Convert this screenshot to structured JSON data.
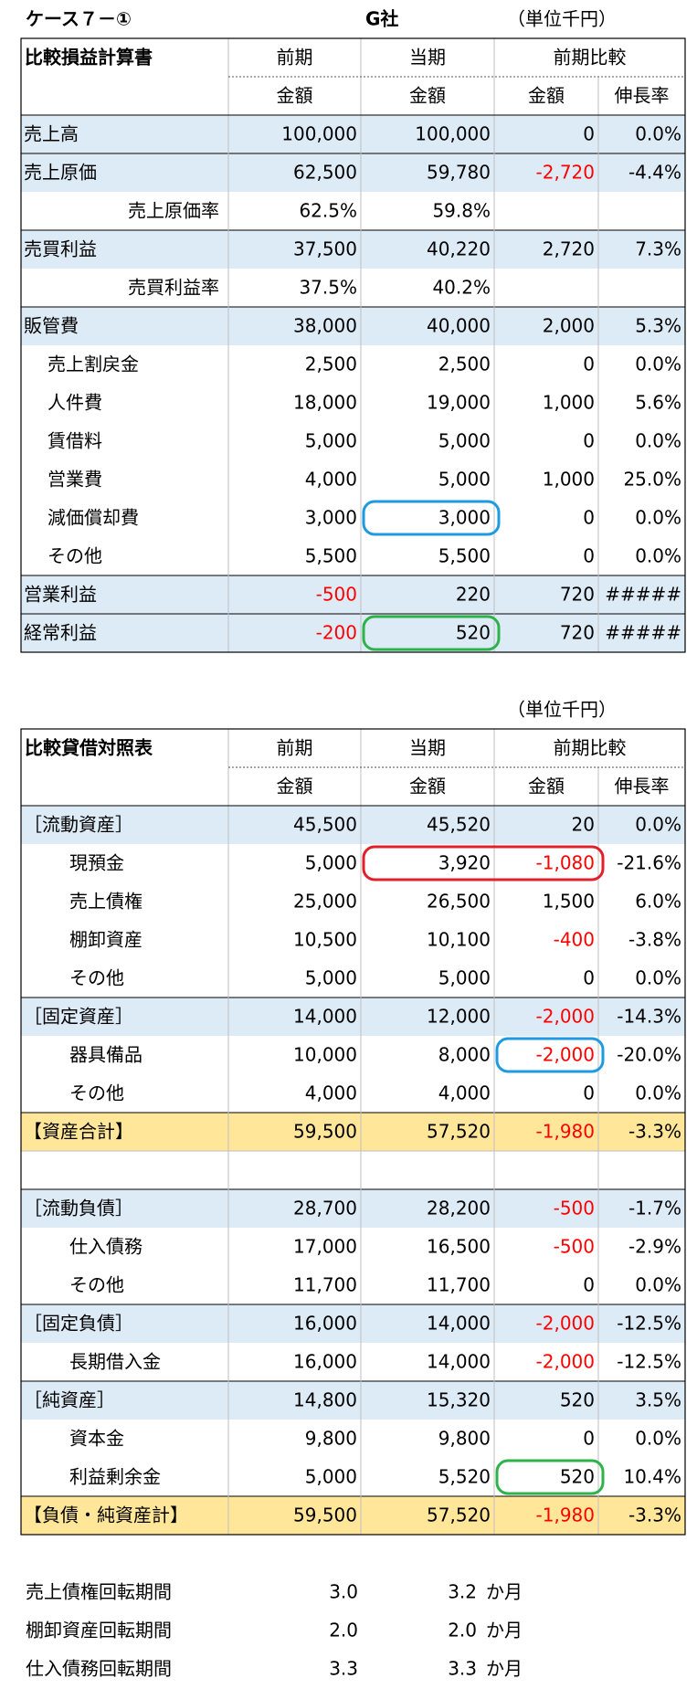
{
  "header": {
    "case": "ケース７－①",
    "company": "G社",
    "unit": "（単位千円）"
  },
  "income_statement": {
    "title": "比較損益計算書",
    "columns": [
      "前期",
      "当期",
      "前期比較"
    ],
    "subcolumns": [
      "金額",
      "金額",
      "金額",
      "伸長率"
    ],
    "rows": [
      {
        "kind": "main",
        "cells": [
          "売上高",
          "100,000",
          "100,000",
          "0",
          "0.0%"
        ]
      },
      {
        "kind": "main",
        "cells": [
          "売上原価",
          "62,500",
          "59,780",
          "-2,720",
          "-4.4%"
        ]
      },
      {
        "kind": "rate",
        "cells": [
          "売上原価率",
          "62.5%",
          "59.8%"
        ]
      },
      {
        "kind": "main",
        "cells": [
          "売買利益",
          "37,500",
          "40,220",
          "2,720",
          "7.3%"
        ]
      },
      {
        "kind": "rate",
        "cells": [
          "売買利益率",
          "37.5%",
          "40.2%"
        ]
      },
      {
        "kind": "main",
        "cells": [
          "販管費",
          "38,000",
          "40,000",
          "2,000",
          "5.3%"
        ]
      },
      {
        "kind": "item",
        "cells": [
          "売上割戻金",
          "2,500",
          "2,500",
          "0",
          "0.0%"
        ]
      },
      {
        "kind": "item",
        "cells": [
          "人件費",
          "18,000",
          "19,000",
          "1,000",
          "5.6%"
        ]
      },
      {
        "kind": "item",
        "cells": [
          "賃借料",
          "5,000",
          "5,000",
          "0",
          "0.0%"
        ]
      },
      {
        "kind": "item",
        "cells": [
          "営業費",
          "4,000",
          "5,000",
          "1,000",
          "25.0%"
        ]
      },
      {
        "kind": "item",
        "cells": [
          "減価償却費",
          "3,000",
          "3,000",
          "0",
          "0.0%"
        ]
      },
      {
        "kind": "item",
        "cells": [
          "その他",
          "5,500",
          "5,500",
          "0",
          "0.0%"
        ]
      },
      {
        "kind": "main",
        "cells": [
          "営業利益",
          "-500",
          "220",
          "720",
          "#####"
        ]
      },
      {
        "kind": "main",
        "cells": [
          "経常利益",
          "-200",
          "520",
          "720",
          "#####"
        ]
      }
    ]
  },
  "balance_sheet": {
    "unit": "（単位千円）",
    "title": "比較貸借対照表",
    "columns": [
      "前期",
      "当期",
      "前期比較"
    ],
    "subcolumns": [
      "金額",
      "金額",
      "金額",
      "伸長率"
    ],
    "asset_rows": [
      {
        "kind": "main",
        "cells": [
          "［流動資産］",
          "45,500",
          "45,520",
          "20",
          "0.0%"
        ]
      },
      {
        "kind": "item",
        "cells": [
          "現預金",
          "5,000",
          "3,920",
          "-1,080",
          "-21.6%"
        ]
      },
      {
        "kind": "item",
        "cells": [
          "売上債権",
          "25,000",
          "26,500",
          "1,500",
          "6.0%"
        ]
      },
      {
        "kind": "item",
        "cells": [
          "棚卸資産",
          "10,500",
          "10,100",
          "-400",
          "-3.8%"
        ]
      },
      {
        "kind": "item",
        "cells": [
          "その他",
          "5,000",
          "5,000",
          "0",
          "0.0%"
        ]
      },
      {
        "kind": "main",
        "cells": [
          "［固定資産］",
          "14,000",
          "12,000",
          "-2,000",
          "-14.3%"
        ]
      },
      {
        "kind": "item",
        "cells": [
          "器具備品",
          "10,000",
          "8,000",
          "-2,000",
          "-20.0%"
        ]
      },
      {
        "kind": "item",
        "cells": [
          "その他",
          "4,000",
          "4,000",
          "0",
          "0.0%"
        ]
      },
      {
        "kind": "total",
        "cells": [
          "【資産合計】",
          "59,500",
          "57,520",
          "-1,980",
          "-3.3%"
        ]
      }
    ],
    "liability_rows": [
      {
        "kind": "main",
        "cells": [
          "［流動負債］",
          "28,700",
          "28,200",
          "-500",
          "-1.7%"
        ]
      },
      {
        "kind": "item",
        "cells": [
          "仕入債務",
          "17,000",
          "16,500",
          "-500",
          "-2.9%"
        ]
      },
      {
        "kind": "item",
        "cells": [
          "その他",
          "11,700",
          "11,700",
          "0",
          "0.0%"
        ]
      },
      {
        "kind": "main",
        "cells": [
          "［固定負債］",
          "16,000",
          "14,000",
          "-2,000",
          "-12.5%"
        ]
      },
      {
        "kind": "item",
        "cells": [
          "長期借入金",
          "16,000",
          "14,000",
          "-2,000",
          "-12.5%"
        ]
      },
      {
        "kind": "main",
        "cells": [
          "［純資産］",
          "14,800",
          "15,320",
          "520",
          "3.5%"
        ]
      },
      {
        "kind": "item",
        "cells": [
          "資本金",
          "9,800",
          "9,800",
          "0",
          "0.0%"
        ]
      },
      {
        "kind": "item",
        "cells": [
          "利益剰余金",
          "5,000",
          "5,520",
          "520",
          "10.4%"
        ]
      },
      {
        "kind": "total",
        "cells": [
          "【負債・純資産計】",
          "59,500",
          "57,520",
          "-1,980",
          "-3.3%"
        ]
      }
    ]
  },
  "ratios": [
    {
      "label": "売上債権回転期間",
      "previous": "3.0",
      "current": "3.2",
      "unit": "か月"
    },
    {
      "label": "棚卸資産回転期間",
      "previous": "2.0",
      "current": "2.0",
      "unit": "か月"
    },
    {
      "label": "仕入債務回転期間",
      "previous": "3.3",
      "current": "3.3",
      "unit": "か月"
    }
  ]
}
